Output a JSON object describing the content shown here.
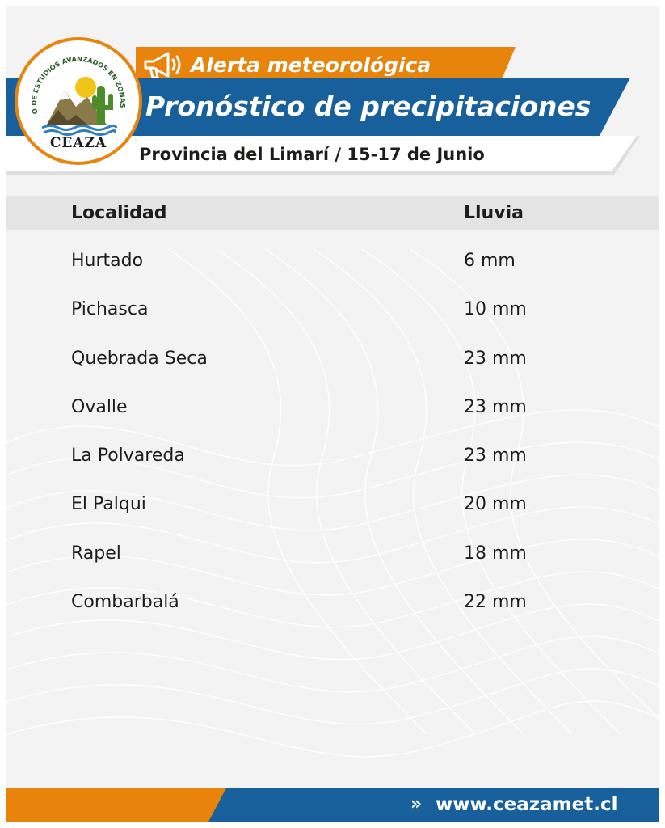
{
  "header": {
    "alert_label": "Alerta meteorológica",
    "title": "Pronóstico de precipitaciones",
    "subtitle": "Provincia del Limarí / 15-17 de Junio"
  },
  "logo": {
    "arc_text": "CENTRO DE ESTUDIOS AVANZADOS EN ZONAS ÁRIDAS",
    "name": "CEAZA"
  },
  "table": {
    "headers": [
      "Localidad",
      "Lluvia"
    ],
    "rows": [
      {
        "localidad": "Hurtado",
        "lluvia": "6 mm"
      },
      {
        "localidad": "Pichasca",
        "lluvia": "10 mm"
      },
      {
        "localidad": "Quebrada Seca",
        "lluvia": "23 mm"
      },
      {
        "localidad": "Ovalle",
        "lluvia": "23 mm"
      },
      {
        "localidad": "La Polvareda",
        "lluvia": "23 mm"
      },
      {
        "localidad": "El Palqui",
        "lluvia": "20 mm"
      },
      {
        "localidad": "Rapel",
        "lluvia": "18 mm"
      },
      {
        "localidad": "Combarbalá",
        "lluvia": "22 mm"
      }
    ]
  },
  "footer": {
    "arrow": "»",
    "url": "www.ceazamet.cl"
  },
  "colors": {
    "orange": "#e8840c",
    "blue": "#17609b",
    "background": "#f3f3f3",
    "text": "#1d1d1b"
  },
  "icons": [
    "megaphone-icon",
    "ceaza-logo"
  ]
}
